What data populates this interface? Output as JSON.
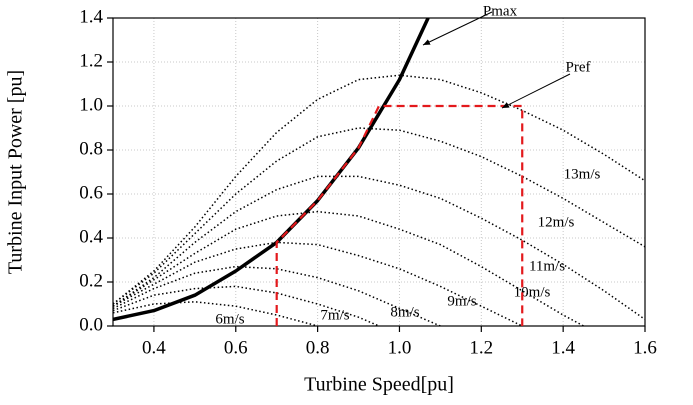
{
  "chart_data": {
    "type": "line",
    "xlabel": "Turbine Speed[pu]",
    "ylabel": "Turbine Input Power [pu]",
    "xlim": [
      0.3,
      1.6
    ],
    "ylim": [
      0,
      1.4
    ],
    "xticks": [
      0.4,
      0.6,
      0.8,
      {
        "value": 1.0,
        "label": "1.0"
      },
      1.2,
      1.4,
      1.6
    ],
    "yticks": [
      {
        "value": 0.0,
        "label": "0.0"
      },
      0.2,
      0.4,
      0.6,
      0.8,
      {
        "value": 1.0,
        "label": "1.0"
      },
      1.2,
      1.4
    ],
    "grid": true,
    "series": [
      {
        "name": "6m/s",
        "color": "#000000",
        "style": "dotted",
        "x": [
          0.3,
          0.4,
          0.5,
          0.6,
          0.7,
          0.8
        ],
        "values": [
          0.06,
          0.1,
          0.11,
          0.09,
          0.05,
          0.0
        ]
      },
      {
        "name": "7m/s",
        "color": "#000000",
        "style": "dotted",
        "x": [
          0.3,
          0.4,
          0.5,
          0.6,
          0.7,
          0.8,
          0.9,
          0.95
        ],
        "values": [
          0.07,
          0.14,
          0.17,
          0.18,
          0.15,
          0.1,
          0.04,
          0.0
        ]
      },
      {
        "name": "8m/s",
        "color": "#000000",
        "style": "dotted",
        "x": [
          0.3,
          0.4,
          0.5,
          0.6,
          0.7,
          0.8,
          0.9,
          1.0,
          1.1
        ],
        "values": [
          0.08,
          0.17,
          0.24,
          0.27,
          0.26,
          0.22,
          0.16,
          0.08,
          0.0
        ]
      },
      {
        "name": "9m/s",
        "color": "#000000",
        "style": "dotted",
        "x": [
          0.3,
          0.4,
          0.5,
          0.6,
          0.7,
          0.8,
          0.9,
          1.0,
          1.1,
          1.2,
          1.3
        ],
        "values": [
          0.09,
          0.19,
          0.29,
          0.35,
          0.38,
          0.37,
          0.32,
          0.26,
          0.18,
          0.09,
          0.0
        ]
      },
      {
        "name": "10m/s",
        "color": "#000000",
        "style": "dotted",
        "x": [
          0.3,
          0.4,
          0.5,
          0.6,
          0.7,
          0.8,
          0.9,
          1.0,
          1.1,
          1.2,
          1.3,
          1.4,
          1.45
        ],
        "values": [
          0.09,
          0.21,
          0.33,
          0.44,
          0.5,
          0.52,
          0.5,
          0.44,
          0.37,
          0.27,
          0.16,
          0.05,
          0.0
        ]
      },
      {
        "name": "11m/s",
        "color": "#000000",
        "style": "dotted",
        "x": [
          0.3,
          0.4,
          0.5,
          0.6,
          0.7,
          0.8,
          0.9,
          1.0,
          1.1,
          1.2,
          1.3,
          1.4,
          1.5,
          1.6
        ],
        "values": [
          0.09,
          0.22,
          0.38,
          0.52,
          0.62,
          0.68,
          0.68,
          0.64,
          0.58,
          0.49,
          0.39,
          0.28,
          0.16,
          0.03
        ]
      },
      {
        "name": "12m/s",
        "color": "#000000",
        "style": "dotted",
        "x": [
          0.3,
          0.4,
          0.5,
          0.6,
          0.7,
          0.8,
          0.9,
          1.0,
          1.1,
          1.2,
          1.3,
          1.4,
          1.5,
          1.6
        ],
        "values": [
          0.1,
          0.24,
          0.42,
          0.6,
          0.75,
          0.86,
          0.9,
          0.89,
          0.84,
          0.77,
          0.68,
          0.58,
          0.47,
          0.36
        ]
      },
      {
        "name": "13m/s",
        "color": "#000000",
        "style": "dotted",
        "x": [
          0.3,
          0.4,
          0.5,
          0.6,
          0.7,
          0.8,
          0.9,
          1.0,
          1.1,
          1.2,
          1.3,
          1.4,
          1.5,
          1.6
        ],
        "values": [
          0.1,
          0.25,
          0.45,
          0.68,
          0.88,
          1.03,
          1.12,
          1.14,
          1.12,
          1.06,
          0.98,
          0.89,
          0.78,
          0.66
        ]
      },
      {
        "name": "Pmax",
        "color": "#000000",
        "style": "solid",
        "x": [
          0.3,
          0.4,
          0.5,
          0.6,
          0.7,
          0.8,
          0.9,
          1.0,
          1.07
        ],
        "values": [
          0.03,
          0.07,
          0.14,
          0.25,
          0.38,
          0.57,
          0.81,
          1.12,
          1.4
        ]
      },
      {
        "name": "Pref",
        "color": "#e3191c",
        "style": "dashed",
        "x": [
          0.7,
          0.7,
          0.8,
          0.9,
          0.95,
          1.3,
          1.3
        ],
        "values": [
          0.0,
          0.38,
          0.57,
          0.81,
          1.0,
          1.0,
          0.0
        ]
      }
    ]
  }
}
